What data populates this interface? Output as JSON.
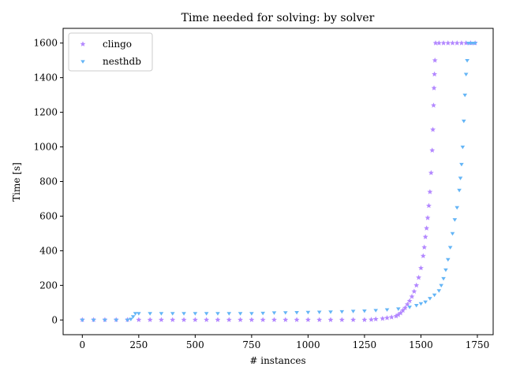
{
  "chart_data": {
    "type": "scatter",
    "title": "Time needed for solving: by solver",
    "xlabel": "# instances",
    "ylabel": "Time [s]",
    "xlim": [
      -85,
      1820
    ],
    "ylim": [
      -85,
      1685
    ],
    "xticks": [
      0,
      250,
      500,
      750,
      1000,
      1250,
      1500,
      1750
    ],
    "yticks": [
      0,
      200,
      400,
      600,
      800,
      1000,
      1200,
      1400,
      1600
    ],
    "grid": false,
    "legend_position": "top-left",
    "series": [
      {
        "name": "clingo",
        "marker": "star",
        "color": "#b388ff",
        "points": [
          [
            0,
            1
          ],
          [
            50,
            1
          ],
          [
            100,
            1
          ],
          [
            150,
            1
          ],
          [
            200,
            1
          ],
          [
            250,
            1
          ],
          [
            300,
            1
          ],
          [
            350,
            1
          ],
          [
            400,
            1
          ],
          [
            450,
            1
          ],
          [
            500,
            1
          ],
          [
            550,
            1
          ],
          [
            600,
            1
          ],
          [
            650,
            1
          ],
          [
            700,
            1
          ],
          [
            750,
            1
          ],
          [
            800,
            1
          ],
          [
            850,
            1
          ],
          [
            900,
            1
          ],
          [
            950,
            1
          ],
          [
            1000,
            1
          ],
          [
            1050,
            1
          ],
          [
            1100,
            1
          ],
          [
            1150,
            1
          ],
          [
            1200,
            1
          ],
          [
            1250,
            1
          ],
          [
            1280,
            2
          ],
          [
            1300,
            5
          ],
          [
            1330,
            8
          ],
          [
            1350,
            12
          ],
          [
            1370,
            16
          ],
          [
            1390,
            22
          ],
          [
            1400,
            30
          ],
          [
            1410,
            40
          ],
          [
            1420,
            55
          ],
          [
            1430,
            70
          ],
          [
            1440,
            90
          ],
          [
            1450,
            110
          ],
          [
            1460,
            135
          ],
          [
            1470,
            165
          ],
          [
            1480,
            200
          ],
          [
            1490,
            245
          ],
          [
            1500,
            300
          ],
          [
            1510,
            370
          ],
          [
            1515,
            420
          ],
          [
            1520,
            480
          ],
          [
            1525,
            530
          ],
          [
            1530,
            590
          ],
          [
            1535,
            660
          ],
          [
            1540,
            740
          ],
          [
            1545,
            850
          ],
          [
            1550,
            980
          ],
          [
            1553,
            1100
          ],
          [
            1556,
            1240
          ],
          [
            1558,
            1340
          ],
          [
            1560,
            1420
          ],
          [
            1562,
            1500
          ],
          [
            1565,
            1600
          ],
          [
            1580,
            1600
          ],
          [
            1600,
            1600
          ],
          [
            1620,
            1600
          ],
          [
            1640,
            1600
          ],
          [
            1660,
            1600
          ],
          [
            1680,
            1600
          ],
          [
            1700,
            1600
          ],
          [
            1720,
            1600
          ],
          [
            1740,
            1600
          ]
        ]
      },
      {
        "name": "nesthdb",
        "marker": "tri_down",
        "color": "#64b5f6",
        "points": [
          [
            0,
            0
          ],
          [
            50,
            0
          ],
          [
            100,
            0
          ],
          [
            150,
            0
          ],
          [
            200,
            0
          ],
          [
            215,
            5
          ],
          [
            225,
            20
          ],
          [
            235,
            38
          ],
          [
            250,
            38
          ],
          [
            300,
            38
          ],
          [
            350,
            38
          ],
          [
            400,
            38
          ],
          [
            450,
            38
          ],
          [
            500,
            38
          ],
          [
            550,
            38
          ],
          [
            600,
            38
          ],
          [
            650,
            38
          ],
          [
            700,
            38
          ],
          [
            750,
            38
          ],
          [
            800,
            40
          ],
          [
            850,
            42
          ],
          [
            900,
            43
          ],
          [
            950,
            44
          ],
          [
            1000,
            45
          ],
          [
            1050,
            46
          ],
          [
            1100,
            47
          ],
          [
            1150,
            49
          ],
          [
            1200,
            51
          ],
          [
            1250,
            53
          ],
          [
            1300,
            56
          ],
          [
            1350,
            60
          ],
          [
            1400,
            65
          ],
          [
            1450,
            75
          ],
          [
            1480,
            85
          ],
          [
            1500,
            95
          ],
          [
            1520,
            105
          ],
          [
            1540,
            125
          ],
          [
            1560,
            145
          ],
          [
            1580,
            170
          ],
          [
            1590,
            200
          ],
          [
            1600,
            240
          ],
          [
            1610,
            290
          ],
          [
            1620,
            350
          ],
          [
            1630,
            420
          ],
          [
            1640,
            500
          ],
          [
            1650,
            580
          ],
          [
            1660,
            650
          ],
          [
            1670,
            750
          ],
          [
            1675,
            820
          ],
          [
            1680,
            900
          ],
          [
            1685,
            1000
          ],
          [
            1690,
            1150
          ],
          [
            1695,
            1300
          ],
          [
            1700,
            1420
          ],
          [
            1705,
            1500
          ],
          [
            1710,
            1600
          ],
          [
            1720,
            1600
          ],
          [
            1730,
            1600
          ],
          [
            1740,
            1600
          ]
        ]
      }
    ]
  }
}
